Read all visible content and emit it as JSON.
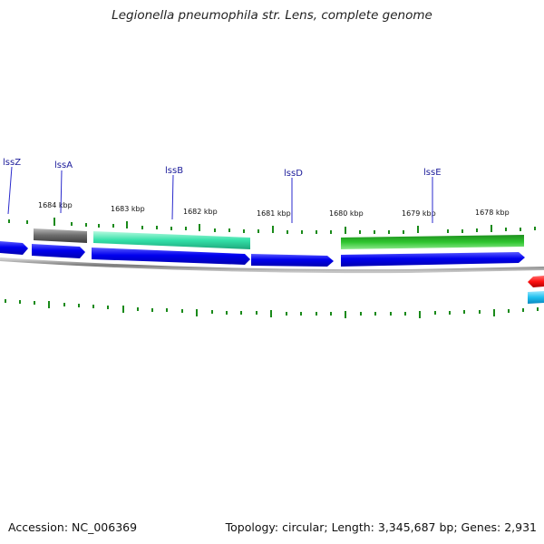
{
  "title": "Legionella pneumophila str. Lens, complete genome",
  "footer": {
    "accession": "Accession: NC_006369",
    "topology": "Topology: circular; Length: 3,345,687 bp; Genes: 2,931"
  },
  "colors": {
    "background": "#ffffff",
    "backbone": "#888888",
    "forward_cds": "#0000ee",
    "tick": "#1a8a1a",
    "gene_label": "#1a1a99",
    "lss_feature_gray": "#6f6f6f",
    "lss_feature_teal": "#33e0a8",
    "lss_feature_green": "#2ec52e",
    "reverse_feature_red": "#ff1010",
    "reverse_feature_cyan": "#1ec0ee"
  },
  "scale_labels": [
    "1684 kbp",
    "1683 kbp",
    "1682 kbp",
    "1681 kbp",
    "1680 kbp",
    "1679 kbp",
    "1678 kbp"
  ],
  "gene_labels": [
    "lssZ",
    "lssA",
    "lssB",
    "lssD",
    "lssE"
  ]
}
